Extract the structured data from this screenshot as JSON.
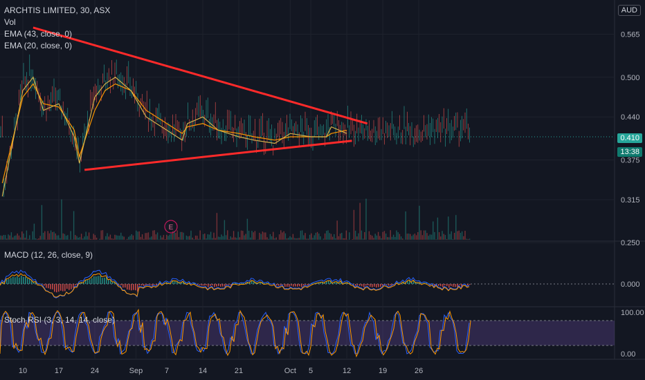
{
  "header": {
    "symbol_line": "ARCHTIS LIMITED, 30, ASX",
    "currency": "AUD"
  },
  "main_legend": [
    "Vol",
    "EMA (43, close, 0)",
    "EMA (20, close, 0)"
  ],
  "macd_legend": "MACD (12, 26, close, 9)",
  "stoch_legend": "Stoch RSI (3, 3, 14, 14, close)",
  "price_axis": {
    "ticks": [
      "0.565",
      "0.500",
      "0.440",
      "0.375",
      "0.315",
      "0.250"
    ],
    "tick_values": [
      0.565,
      0.5,
      0.44,
      0.375,
      0.315,
      0.25
    ],
    "current_price": "0.410",
    "countdown": "13:38"
  },
  "macd_axis": {
    "ticks": [
      "0.000"
    ]
  },
  "stoch_axis": {
    "ticks": [
      "100.00",
      "0.00"
    ]
  },
  "time_axis": {
    "labels": [
      "10",
      "17",
      "24",
      "Sep",
      "7",
      "14",
      "21",
      "Oct",
      "5",
      "12",
      "19",
      "26"
    ]
  },
  "event_marker": "E",
  "colors": {
    "background": "#131722",
    "trendline": "#ff2a2a",
    "ema_fast": "#ff9800",
    "ema_slow": "#d4b14a",
    "up": "#26a69a",
    "down": "#ef5350",
    "macd": "#2962ff",
    "signal": "#ff9800",
    "stoch_k": "#2962ff",
    "stoch_d": "#ff9800",
    "stoch_band": "#7e57c2",
    "price_tag": "#26a69a"
  },
  "chart_data": {
    "type": "line",
    "title": "ARCHTIS LIMITED, 30, ASX",
    "ylim": [
      0.245,
      0.6
    ],
    "x": [
      "Aug 6",
      "Aug 10",
      "Aug 12",
      "Aug 14",
      "Aug 17",
      "Aug 20",
      "Aug 21",
      "Aug 24",
      "Aug 26",
      "Aug 28",
      "Aug 31",
      "Sep 3",
      "Sep 7",
      "Sep 10",
      "Sep 11",
      "Sep 14",
      "Sep 17",
      "Sep 21",
      "Sep 24",
      "Sep 28",
      "Oct 1",
      "Oct 5",
      "Oct 8",
      "Oct 9",
      "Oct 12"
    ],
    "series": [
      {
        "name": "EMA (43, close, 0)",
        "values": [
          0.34,
          0.47,
          0.49,
          0.46,
          0.455,
          0.42,
          0.38,
          0.45,
          0.48,
          0.49,
          0.48,
          0.45,
          0.43,
          0.415,
          0.425,
          0.43,
          0.42,
          0.415,
          0.41,
          0.405,
          0.41,
          0.41,
          0.41,
          0.415,
          0.42
        ]
      },
      {
        "name": "EMA (20, close, 0)",
        "values": [
          0.32,
          0.48,
          0.5,
          0.45,
          0.46,
          0.41,
          0.37,
          0.47,
          0.49,
          0.5,
          0.48,
          0.44,
          0.42,
          0.405,
          0.43,
          0.44,
          0.42,
          0.41,
          0.405,
          0.4,
          0.415,
          0.41,
          0.41,
          0.425,
          0.415
        ]
      }
    ],
    "trendlines": [
      {
        "from": [
          "Aug 12",
          0.575
        ],
        "to": [
          "Oct 16",
          0.43
        ]
      },
      {
        "from": [
          "Aug 22",
          0.36
        ],
        "to": [
          "Oct 13",
          0.404
        ]
      }
    ]
  }
}
